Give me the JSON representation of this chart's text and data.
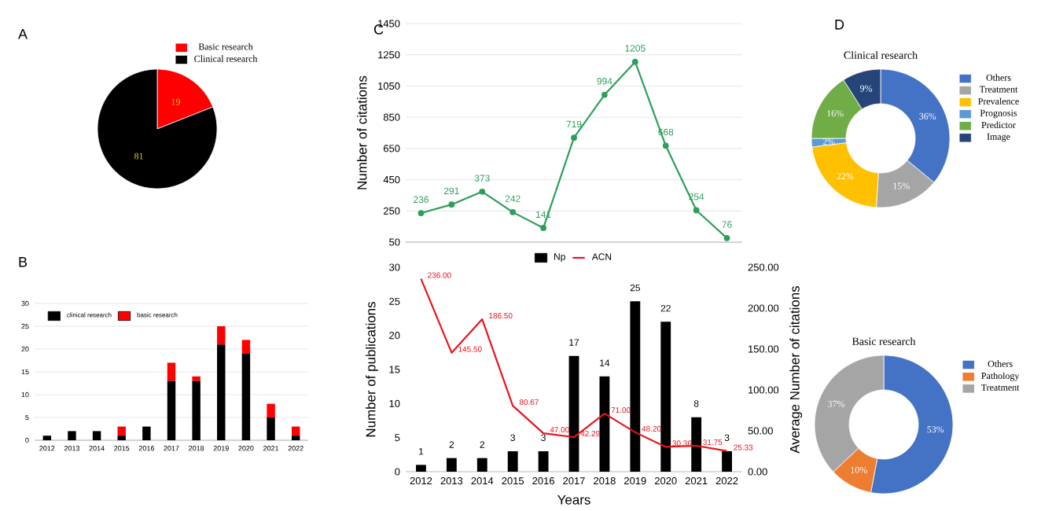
{
  "chart_data": [
    {
      "type": "pie",
      "categories": [
        "Basic research",
        "Clinical research"
      ],
      "values": [
        19,
        81
      ],
      "colors": [
        "#ff0000",
        "#000000"
      ],
      "data_labels": true,
      "legend": "top right",
      "annotations": [
        "A"
      ]
    },
    {
      "type": "bar",
      "stacked": true,
      "categories": [
        "2012",
        "2013",
        "2014",
        "2015",
        "2016",
        "2017",
        "2018",
        "2019",
        "2020",
        "2021",
        "2022"
      ],
      "series": [
        {
          "name": "clinical research",
          "color": "#000000",
          "values": [
            1,
            2,
            2,
            1,
            3,
            13,
            13,
            21,
            19,
            5,
            1
          ]
        },
        {
          "name": "basic research",
          "color": "#ff0000",
          "values": [
            0,
            0,
            0,
            2,
            0,
            4,
            1,
            4,
            3,
            3,
            2
          ]
        }
      ],
      "ylim": [
        0,
        30
      ],
      "yticks": [
        0,
        5,
        10,
        15,
        20,
        25,
        30
      ],
      "grid": "y",
      "legend": "top left",
      "annotations": [
        "B"
      ]
    },
    {
      "type": "line",
      "categories": [
        "2012",
        "2013",
        "2014",
        "2015",
        "2016",
        "2017",
        "2018",
        "2019",
        "2020",
        "2021",
        "2022"
      ],
      "series": [
        {
          "color": "#2e9e5b",
          "values": [
            236,
            291,
            373,
            242,
            141,
            719,
            994,
            1205,
            668,
            254,
            76
          ]
        }
      ],
      "ylim": [
        50,
        1450
      ],
      "yticks": [
        50,
        250,
        450,
        650,
        850,
        1050,
        1250,
        1450
      ],
      "ylabel": "Number of citations",
      "grid": "y",
      "marker": "circle",
      "data_labels": true,
      "tick_labels": "y",
      "annotations": [
        "C"
      ]
    },
    {
      "type": "bar",
      "categories": [
        "2012",
        "2013",
        "2014",
        "2015",
        "2016",
        "2017",
        "2018",
        "2019",
        "2020",
        "2021",
        "2022"
      ],
      "xlabel": "Years",
      "ylabel": "Number of publications",
      "y2label": "Average Number of citations",
      "series": [
        {
          "name": "Np",
          "color": "#000000",
          "values": [
            1,
            2,
            2,
            3,
            3,
            17,
            14,
            25,
            22,
            8,
            3
          ],
          "value_labels": [
            "1",
            "2",
            "2",
            "3",
            "3",
            "17",
            "14",
            "25",
            "22",
            "8",
            "3"
          ]
        },
        {
          "name": "ACN",
          "type": "line",
          "axis": "y2",
          "color": "#e8141c",
          "values": [
            236.0,
            145.5,
            186.5,
            80.67,
            47.0,
            42.29,
            71.0,
            48.2,
            30.36,
            31.75,
            25.33
          ],
          "value_labels": [
            "236.00",
            "145.50",
            "186.50",
            "80.67",
            "47.00",
            "42.29",
            "71.00",
            "48.20",
            "30.36",
            "31.75",
            "25.33"
          ]
        }
      ],
      "ylim": [
        0,
        30
      ],
      "yticks": [
        0,
        5,
        10,
        15,
        20,
        25,
        30
      ],
      "y2lim": [
        0,
        250
      ],
      "y2ticks": [
        {
          "value": 0,
          "label": "0.00"
        },
        {
          "value": 50,
          "label": "50.00"
        },
        {
          "value": 100,
          "label": "100.00"
        },
        {
          "value": 150,
          "label": "150.00"
        },
        {
          "value": 200,
          "label": "200.00"
        },
        {
          "value": 250,
          "label": "250.00"
        }
      ],
      "legend": "top"
    },
    {
      "type": "donut",
      "title": "Clinical research",
      "categories": [
        "Others",
        "Treatment",
        "Prevalence",
        "Prognosis",
        "Predictor",
        "Image"
      ],
      "values": [
        36,
        15,
        22,
        2,
        16,
        9
      ],
      "colors": [
        "#4472c4",
        "#a5a5a5",
        "#ffc000",
        "#5b9bd5",
        "#70ad47",
        "#264478"
      ],
      "value_labels": [
        "36%",
        "15%",
        "22%",
        "2%",
        "16%",
        "9%"
      ],
      "legend": "right",
      "annotations": [
        "D"
      ]
    },
    {
      "type": "donut",
      "title": "Basic research",
      "categories": [
        "Others",
        "Pathology",
        "Treatment"
      ],
      "values": [
        53,
        10,
        37
      ],
      "colors": [
        "#4472c4",
        "#ed7d31",
        "#a5a5a5"
      ],
      "value_labels": [
        "53%",
        "10%",
        "37%"
      ],
      "legend": "right"
    }
  ]
}
